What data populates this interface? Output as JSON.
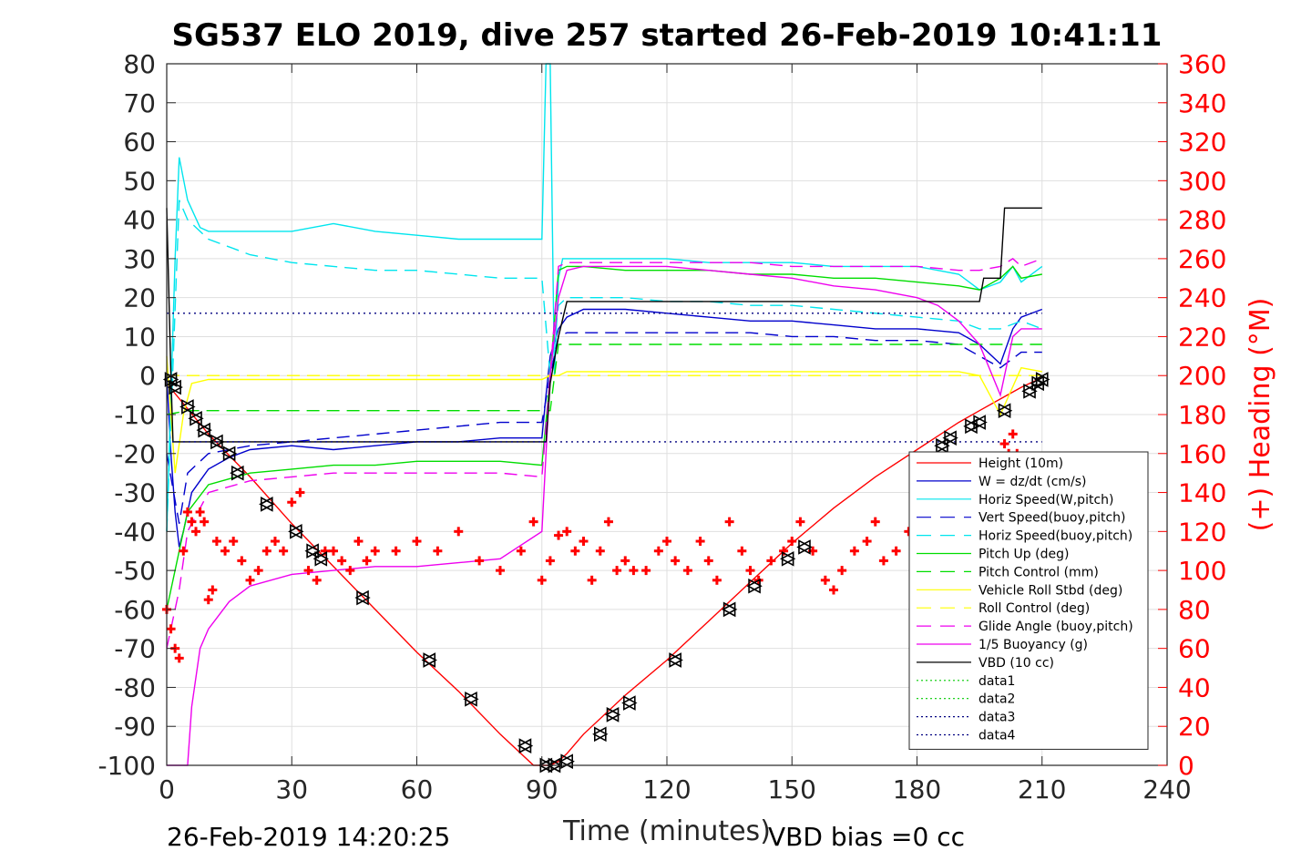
{
  "chart_data": {
    "type": "line",
    "title": "SG537 ELO 2019, dive 257 started 26-Feb-2019 10:41:11",
    "xlabel": "Time (minutes)",
    "ylabel": "",
    "y2label": "(+) Heading (°M)",
    "xlim": [
      0,
      240
    ],
    "ylim": [
      -100,
      80
    ],
    "y2lim": [
      0,
      360
    ],
    "x_ticks": [
      "0",
      "30",
      "60",
      "90",
      "120",
      "150",
      "180",
      "210",
      "240"
    ],
    "y_ticks": [
      "80",
      "70",
      "60",
      "50",
      "40",
      "30",
      "20",
      "10",
      "0",
      "-10",
      "-20",
      "-30",
      "-40",
      "-50",
      "-60",
      "-70",
      "-80",
      "-90",
      "-100"
    ],
    "y2_ticks": [
      "360",
      "340",
      "320",
      "300",
      "280",
      "260",
      "240",
      "220",
      "200",
      "180",
      "160",
      "140",
      "120",
      "100",
      "80",
      "60",
      "40",
      "20",
      "0"
    ],
    "grid": true,
    "legend_position": "lower-right",
    "footer_left": "26-Feb-2019 14:20:25",
    "footer_right": "VBD bias =0 cc",
    "series": [
      {
        "name": "Height (10m)",
        "color": "#ff0000",
        "style": "solid",
        "x": [
          0,
          10,
          20,
          30,
          40,
          50,
          60,
          70,
          80,
          88,
          90,
          92,
          94,
          96,
          100,
          110,
          120,
          130,
          140,
          150,
          160,
          170,
          180,
          190,
          195,
          200,
          205,
          210
        ],
        "y": [
          -2,
          -15,
          -26,
          -38,
          -49,
          -60,
          -71,
          -81,
          -92,
          -100,
          -100,
          -100,
          -99,
          -97,
          -92,
          -82,
          -73,
          -63,
          -53,
          -43,
          -34,
          -26,
          -19,
          -12,
          -9,
          -6,
          -3,
          -0.5
        ]
      },
      {
        "name": "W = dz/dt (cm/s)",
        "color": "#0000cc",
        "style": "solid",
        "x": [
          0,
          1,
          2,
          3,
          4,
          5,
          6,
          8,
          10,
          15,
          20,
          30,
          40,
          50,
          60,
          70,
          80,
          90,
          91,
          92,
          94,
          96,
          100,
          110,
          120,
          130,
          140,
          150,
          160,
          170,
          180,
          190,
          195,
          200,
          203,
          205,
          210
        ],
        "y": [
          0,
          -20,
          -35,
          -44,
          -40,
          -35,
          -30,
          -27,
          -24,
          -21,
          -19,
          -18,
          -19,
          -18,
          -17,
          -17,
          -16,
          -16,
          -5,
          5,
          12,
          15,
          17,
          17,
          16,
          15,
          14,
          14,
          13,
          12,
          12,
          11,
          8,
          3,
          12,
          15,
          17
        ]
      },
      {
        "name": "Horiz Speed(W,pitch)",
        "color": "#00e5ee",
        "style": "solid",
        "x": [
          0,
          2,
          3,
          5,
          8,
          10,
          15,
          20,
          30,
          40,
          50,
          60,
          70,
          80,
          90,
          91,
          92,
          93,
          94,
          95,
          96,
          100,
          110,
          120,
          130,
          140,
          150,
          160,
          170,
          180,
          190,
          195,
          200,
          203,
          205,
          210
        ],
        "y": [
          -40,
          30,
          56,
          45,
          38,
          37,
          37,
          37,
          37,
          39,
          37,
          36,
          35,
          35,
          35,
          80,
          80,
          0,
          25,
          30,
          30,
          30,
          30,
          30,
          29,
          29,
          29,
          28,
          28,
          28,
          26,
          22,
          24,
          28,
          24,
          28
        ]
      },
      {
        "name": "Vert Speed(buoy,pitch)",
        "color": "#0000cc",
        "style": "dashed",
        "x": [
          0,
          3,
          5,
          10,
          20,
          30,
          40,
          50,
          60,
          70,
          80,
          90,
          92,
          94,
          96,
          100,
          110,
          120,
          130,
          140,
          150,
          160,
          170,
          180,
          190,
          195,
          200,
          205,
          210
        ],
        "y": [
          -20,
          -38,
          -25,
          -20,
          -18,
          -17,
          -16,
          -15,
          -14,
          -13,
          -12,
          -12,
          0,
          10,
          11,
          11,
          11,
          11,
          11,
          11,
          10,
          10,
          9,
          9,
          8,
          5,
          2,
          6,
          6
        ]
      },
      {
        "name": "Horiz Speed(buoy,pitch)",
        "color": "#00e5ee",
        "style": "dashed",
        "x": [
          0,
          3,
          5,
          10,
          20,
          30,
          40,
          50,
          60,
          70,
          80,
          90,
          92,
          94,
          96,
          100,
          110,
          120,
          130,
          140,
          150,
          160,
          170,
          180,
          190,
          195,
          200,
          205,
          210
        ],
        "y": [
          -40,
          45,
          40,
          35,
          31,
          29,
          28,
          27,
          27,
          26,
          25,
          25,
          0,
          18,
          20,
          20,
          20,
          19,
          19,
          18,
          18,
          17,
          16,
          15,
          14,
          12,
          12,
          14,
          12
        ]
      },
      {
        "name": "Pitch Up (deg)",
        "color": "#00dd00",
        "style": "solid",
        "x": [
          0,
          3,
          5,
          10,
          20,
          30,
          40,
          50,
          60,
          70,
          80,
          90,
          92,
          94,
          96,
          100,
          110,
          120,
          130,
          140,
          150,
          160,
          170,
          180,
          190,
          195,
          200,
          203,
          205,
          210
        ],
        "y": [
          -60,
          -45,
          -35,
          -28,
          -25,
          -24,
          -23,
          -23,
          -22,
          -22,
          -22,
          -23,
          0,
          27,
          28,
          28,
          27,
          27,
          27,
          26,
          26,
          25,
          25,
          24,
          23,
          22,
          25,
          28,
          25,
          26
        ]
      },
      {
        "name": "Pitch Control (mm)",
        "color": "#00dd00",
        "style": "dashed",
        "x": [
          0,
          5,
          10,
          30,
          60,
          90,
          92,
          94,
          96,
          120,
          150,
          180,
          195,
          210
        ],
        "y": [
          -10,
          -9,
          -9,
          -9,
          -9,
          -9,
          -9,
          8,
          8,
          8,
          8,
          8,
          8,
          8
        ]
      },
      {
        "name": "Vehicle Roll Stbd (deg)",
        "color": "#ffff00",
        "style": "solid",
        "x": [
          0,
          2,
          4,
          6,
          10,
          20,
          30,
          40,
          50,
          60,
          70,
          80,
          90,
          92,
          94,
          96,
          100,
          110,
          120,
          130,
          140,
          150,
          160,
          170,
          180,
          190,
          195,
          200,
          205,
          210
        ],
        "y": [
          5,
          -25,
          -10,
          -2,
          -1,
          -1,
          -1,
          -1,
          -1,
          -1,
          -1,
          -1,
          -1,
          0,
          0,
          1,
          1,
          1,
          1,
          1,
          1,
          1,
          1,
          1,
          1,
          1,
          0,
          -10,
          2,
          1
        ]
      },
      {
        "name": "Roll Control (deg)",
        "color": "#ffff00",
        "style": "dashed",
        "x": [
          0,
          5,
          10,
          30,
          60,
          90,
          92,
          96,
          120,
          150,
          180,
          200,
          210
        ],
        "y": [
          0,
          0,
          0,
          0,
          0,
          0,
          0,
          0,
          0,
          0,
          0,
          0,
          0
        ]
      },
      {
        "name": "Glide Angle (buoy,pitch)",
        "color": "#ee00ee",
        "style": "dashed",
        "x": [
          0,
          3,
          5,
          10,
          20,
          30,
          40,
          50,
          60,
          70,
          80,
          90,
          92,
          94,
          96,
          100,
          110,
          120,
          130,
          140,
          150,
          160,
          170,
          180,
          190,
          195,
          200,
          203,
          205,
          210
        ],
        "y": [
          -70,
          -55,
          -40,
          -30,
          -27,
          -26,
          -25,
          -25,
          -25,
          -25,
          -25,
          -26,
          0,
          28,
          29,
          29,
          29,
          29,
          29,
          29,
          28,
          28,
          28,
          28,
          27,
          27,
          28,
          30,
          28,
          30
        ]
      },
      {
        "name": "1/5 Buoyancy (g)",
        "color": "#ee00ee",
        "style": "solid",
        "x": [
          0,
          2,
          4,
          5,
          6,
          8,
          10,
          15,
          20,
          30,
          40,
          50,
          60,
          70,
          80,
          90,
          91,
          92,
          94,
          96,
          100,
          110,
          120,
          130,
          140,
          150,
          160,
          170,
          180,
          185,
          190,
          195,
          200,
          203,
          205,
          210
        ],
        "y": [
          -100,
          -100,
          -100,
          -100,
          -85,
          -70,
          -65,
          -58,
          -54,
          -51,
          -50,
          -49,
          -49,
          -48,
          -47,
          -40,
          -20,
          0,
          20,
          27,
          28,
          28,
          28,
          27,
          26,
          25,
          23,
          22,
          20,
          18,
          14,
          8,
          -5,
          10,
          12,
          12
        ]
      },
      {
        "name": "VBD (10 cc)",
        "color": "#000000",
        "style": "solid",
        "x": [
          0,
          1,
          1.5,
          90,
          91,
          92,
          94,
          96,
          195,
          196,
          200,
          201,
          205,
          210
        ],
        "y": [
          43,
          0,
          -17,
          -17,
          -17,
          -2,
          10,
          19,
          19,
          25,
          25,
          43,
          43,
          43
        ]
      },
      {
        "name": "data1",
        "color": "#00cc00",
        "style": "dotted",
        "x": [],
        "y": []
      },
      {
        "name": "data2",
        "color": "#00cc00",
        "style": "dotted",
        "x": [],
        "y": []
      },
      {
        "name": "data3",
        "color": "#000080",
        "style": "dotted",
        "x": [
          0,
          210
        ],
        "y": [
          16,
          16
        ]
      },
      {
        "name": "data4",
        "color": "#000080",
        "style": "dotted",
        "x": [
          0,
          210
        ],
        "y": [
          -17,
          -17
        ]
      }
    ],
    "heading": {
      "axis": "right",
      "color": "#ff0000",
      "marker": "+",
      "x": [
        0,
        1,
        2,
        3,
        4,
        5,
        6,
        7,
        8,
        9,
        10,
        11,
        12,
        14,
        16,
        18,
        20,
        22,
        24,
        26,
        28,
        30,
        32,
        34,
        36,
        38,
        40,
        42,
        44,
        46,
        48,
        50,
        55,
        60,
        65,
        70,
        75,
        80,
        85,
        88,
        90,
        92,
        94,
        96,
        98,
        100,
        102,
        104,
        106,
        108,
        110,
        112,
        115,
        118,
        120,
        122,
        125,
        128,
        130,
        132,
        135,
        138,
        140,
        142,
        145,
        148,
        150,
        152,
        155,
        158,
        160,
        162,
        165,
        168,
        170,
        172,
        175,
        178,
        180,
        190,
        195,
        198,
        200,
        201,
        202,
        203,
        204
      ],
      "y": [
        80,
        70,
        60,
        55,
        110,
        130,
        125,
        120,
        130,
        125,
        85,
        90,
        115,
        110,
        115,
        105,
        95,
        100,
        110,
        115,
        110,
        135,
        140,
        100,
        95,
        110,
        110,
        105,
        100,
        115,
        105,
        110,
        110,
        115,
        110,
        120,
        105,
        100,
        110,
        125,
        95,
        105,
        118,
        120,
        110,
        115,
        95,
        110,
        125,
        100,
        105,
        100,
        100,
        110,
        115,
        105,
        100,
        115,
        105,
        95,
        125,
        110,
        100,
        95,
        105,
        110,
        115,
        125,
        110,
        95,
        90,
        100,
        110,
        115,
        125,
        105,
        110,
        120,
        115,
        118,
        120,
        110,
        130,
        165,
        160,
        170,
        160
      ]
    },
    "depth_markers": {
      "x": [
        1,
        2,
        5,
        7,
        9,
        12,
        15,
        17,
        24,
        31,
        35,
        37,
        47,
        63,
        73,
        86,
        91,
        93,
        96,
        104,
        107,
        111,
        122,
        135,
        141,
        149,
        153,
        186,
        188,
        193,
        195,
        201,
        207,
        209,
        210
      ],
      "y": [
        -1,
        -3,
        -8,
        -11,
        -14,
        -17,
        -20,
        -25,
        -33,
        -40,
        -45,
        -47,
        -57,
        -73,
        -83,
        -95,
        -100,
        -100,
        -99,
        -92,
        -87,
        -84,
        -73,
        -60,
        -54,
        -47,
        -44,
        -18,
        -16,
        -13,
        -12,
        -9,
        -4,
        -2,
        -1
      ]
    }
  }
}
